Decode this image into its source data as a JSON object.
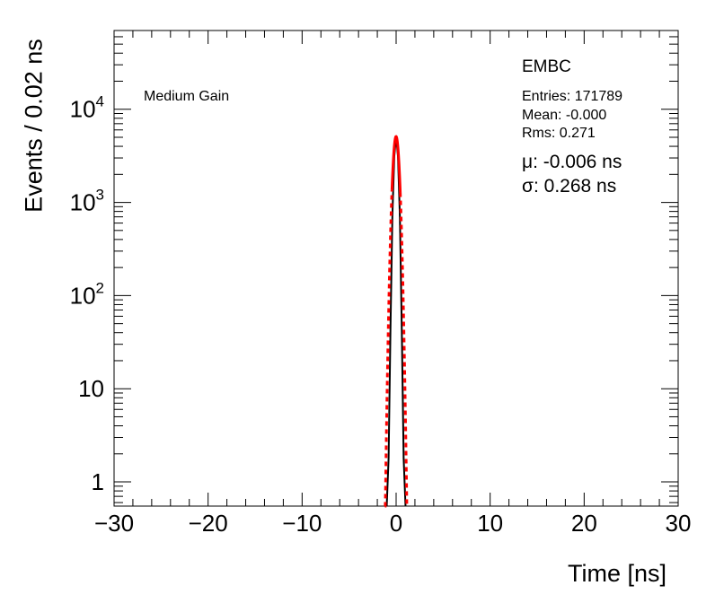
{
  "chart_data": {
    "type": "line",
    "xlabel": "Time [ns]",
    "ylabel": "Events / 0.02 ns",
    "xlim": [
      -30,
      30
    ],
    "ylim": [
      0.55,
      70000
    ],
    "yscale": "log",
    "x_ticks": [
      -30,
      -20,
      -10,
      0,
      10,
      20,
      30
    ],
    "x_tick_labels": [
      "−30",
      "−20",
      "−10",
      "0",
      "10",
      "20",
      "30"
    ],
    "y_ticks": [
      {
        "value": 1,
        "base": "1",
        "exp": ""
      },
      {
        "value": 10,
        "base": "10",
        "exp": ""
      },
      {
        "value": 100,
        "base": "10",
        "exp": "2"
      },
      {
        "value": 1000,
        "base": "10",
        "exp": "3"
      },
      {
        "value": 10000,
        "base": "10",
        "exp": "4"
      }
    ],
    "grid": false,
    "series": [
      {
        "kind": "histogram",
        "color": "#000000",
        "x": [
          -1.0,
          -0.8,
          -0.6,
          -0.4,
          -0.2,
          0.0,
          0.2,
          0.4,
          0.6,
          0.8,
          1.0
        ],
        "y": [
          0.55,
          1.8,
          45,
          700,
          3100,
          5100,
          3100,
          700,
          45,
          1.8,
          0.55
        ]
      },
      {
        "kind": "fit",
        "color": "#ff0000",
        "dashed_beyond": 0.45,
        "mu": -0.006,
        "sigma": 0.268,
        "peak": 5100
      }
    ]
  },
  "labels": {
    "gain": "Medium Gain",
    "partition": "EMBC",
    "entries": "Entries: 171789",
    "mean": "Mean: -0.000",
    "rms": "Rms: 0.271",
    "mu_symbol": "μ",
    "mu_value": ": -0.006 ns",
    "sigma_symbol": "σ",
    "sigma_value": ": 0.268 ns"
  }
}
